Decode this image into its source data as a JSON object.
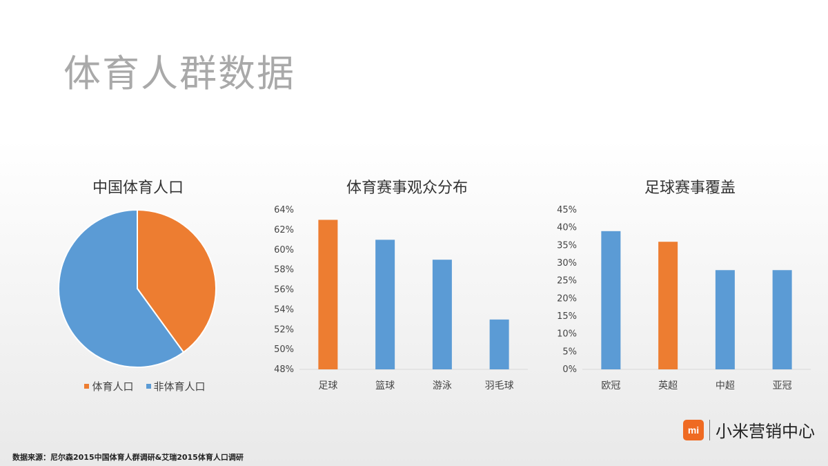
{
  "page": {
    "title": "体育人群数据",
    "source": "数据来源：尼尔森2015中国体育人群调研&艾瑞2015体育人口调研",
    "brand_logo": "mi",
    "brand_name": "小米营销中心"
  },
  "colors": {
    "orange": "#ed7d31",
    "blue": "#5b9bd5",
    "axis": "#d9d9d9"
  },
  "chart_data": [
    {
      "type": "pie",
      "title": "中国体育人口",
      "labels": [
        "体育人口",
        "非体育人口"
      ],
      "values": [
        40,
        60
      ],
      "legend": "bottom"
    },
    {
      "type": "bar",
      "title": "体育赛事观众分布",
      "categories": [
        "足球",
        "篮球",
        "游泳",
        "羽毛球"
      ],
      "values": [
        63,
        61,
        59,
        53
      ],
      "highlight_index": 0,
      "ylim": [
        48,
        64
      ],
      "yticks": [
        48,
        50,
        52,
        54,
        56,
        58,
        60,
        62,
        64
      ],
      "yunit": "%",
      "grid": false
    },
    {
      "type": "bar",
      "title": "足球赛事覆盖",
      "categories": [
        "欧冠",
        "英超",
        "中超",
        "亚冠"
      ],
      "values": [
        39,
        36,
        28,
        28
      ],
      "highlight_index": 1,
      "ylim": [
        0,
        45
      ],
      "yticks": [
        0,
        5,
        10,
        15,
        20,
        25,
        30,
        35,
        40,
        45
      ],
      "yunit": "%",
      "grid": false
    }
  ]
}
